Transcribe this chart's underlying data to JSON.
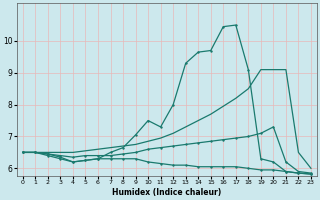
{
  "xlabel": "Humidex (Indice chaleur)",
  "background_color": "#cce8ed",
  "grid_color": "#e8b8b8",
  "line_color": "#1a7a6e",
  "xlim": [
    -0.5,
    23.5
  ],
  "ylim": [
    5.75,
    11.2
  ],
  "x_ticks": [
    0,
    1,
    2,
    3,
    4,
    5,
    6,
    7,
    8,
    9,
    10,
    11,
    12,
    13,
    14,
    15,
    16,
    17,
    18,
    19,
    20,
    21,
    22,
    23
  ],
  "y_ticks": [
    6,
    7,
    8,
    9,
    10
  ],
  "line_a": {
    "x": [
      0,
      1,
      2,
      3,
      4,
      5,
      6,
      7,
      8,
      9,
      10,
      11,
      12,
      13,
      14,
      15,
      16,
      17,
      18,
      19,
      20,
      21,
      22,
      23
    ],
    "y": [
      6.5,
      6.5,
      6.4,
      6.3,
      6.2,
      6.25,
      6.3,
      6.3,
      6.3,
      6.3,
      6.2,
      6.15,
      6.1,
      6.1,
      6.05,
      6.05,
      6.05,
      6.05,
      6.0,
      5.95,
      5.95,
      5.9,
      5.85,
      5.82
    ],
    "marker": true
  },
  "line_b": {
    "x": [
      0,
      1,
      2,
      3,
      4,
      5,
      6,
      7,
      8,
      9,
      10,
      11,
      12,
      13,
      14,
      15,
      16,
      17,
      18,
      19,
      20,
      21,
      22,
      23
    ],
    "y": [
      6.5,
      6.5,
      6.45,
      6.4,
      6.35,
      6.4,
      6.4,
      6.4,
      6.45,
      6.5,
      6.6,
      6.65,
      6.7,
      6.75,
      6.8,
      6.85,
      6.9,
      6.95,
      7.0,
      7.1,
      7.3,
      6.2,
      5.9,
      5.85
    ],
    "marker": true
  },
  "line_c": {
    "x": [
      0,
      1,
      2,
      3,
      4,
      5,
      6,
      7,
      8,
      9,
      10,
      11,
      12,
      13,
      14,
      15,
      16,
      17,
      18,
      19,
      20,
      21,
      22,
      23
    ],
    "y": [
      6.5,
      6.5,
      6.5,
      6.5,
      6.5,
      6.55,
      6.6,
      6.65,
      6.7,
      6.75,
      6.85,
      6.95,
      7.1,
      7.3,
      7.5,
      7.7,
      7.95,
      8.2,
      8.5,
      9.1,
      9.1,
      9.1,
      6.5,
      6.0
    ],
    "marker": false
  },
  "line_d": {
    "x": [
      0,
      1,
      2,
      3,
      4,
      5,
      6,
      7,
      8,
      9,
      10,
      11,
      12,
      13,
      14,
      15,
      16,
      17,
      18,
      19,
      20,
      21,
      22,
      23
    ],
    "y": [
      6.5,
      6.5,
      6.45,
      6.35,
      6.2,
      6.25,
      6.3,
      6.5,
      6.65,
      7.05,
      7.5,
      7.3,
      8.0,
      9.3,
      9.65,
      9.7,
      10.45,
      10.5,
      9.1,
      6.3,
      6.2,
      5.9,
      5.85,
      5.82
    ],
    "marker": true
  }
}
